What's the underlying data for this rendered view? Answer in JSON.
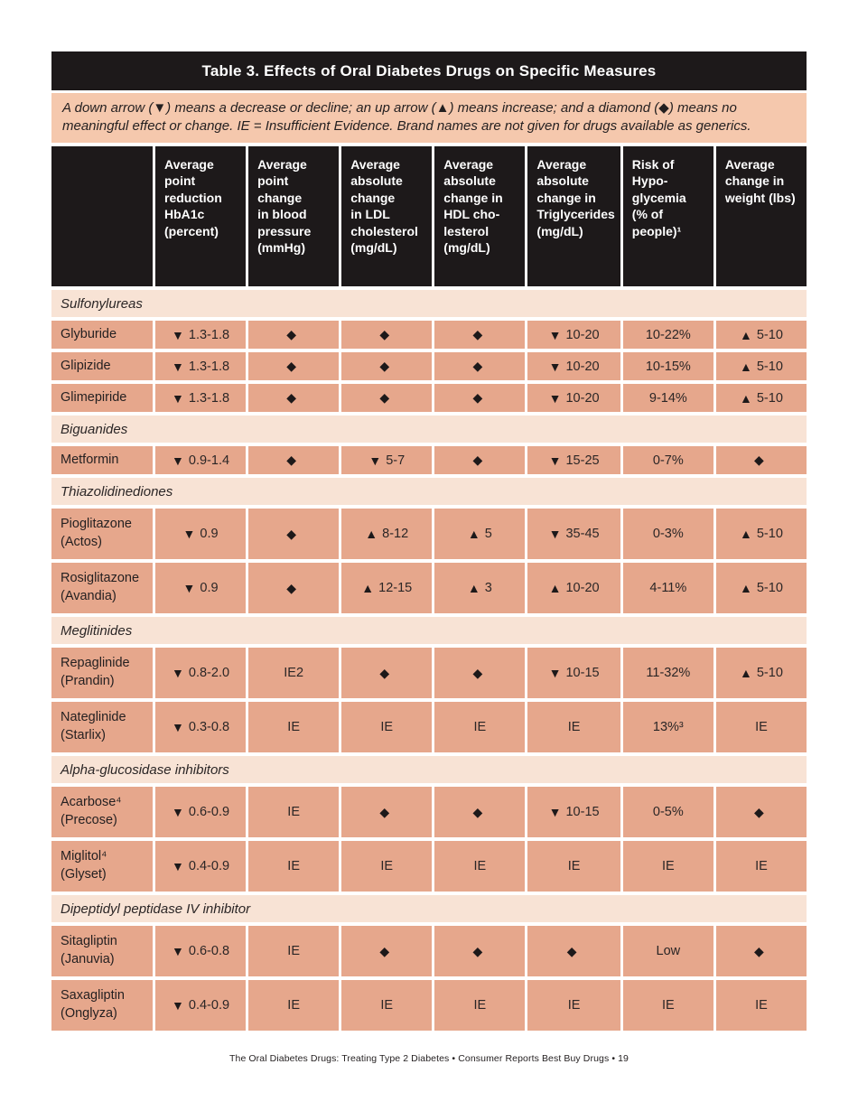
{
  "page": {
    "title": "Table 3. Effects of Oral Diabetes Drugs on Specific Measures",
    "note": "A down arrow (▼) means a decrease or decline; an up arrow (▲) means increase; and a diamond (◆) means no meaningful effect or change. IE = Insufficient Evidence. Brand names are not given for drugs available as generics.",
    "footer": "The Oral Diabetes Drugs: Treating Type 2 Diabetes  •  Consumer Reports Best Buy Drugs  •  19"
  },
  "legend": {
    "down_arrow": "decrease or decline",
    "up_arrow": "increase",
    "diamond": "no meaningful effect or change",
    "IE": "Insufficient Evidence"
  },
  "colors": {
    "header_black": "#1d191a",
    "note_peach": "#f5c8ad",
    "section_light": "#f8e3d5",
    "row_salmon": "#e6a78c",
    "text_dark": "#231f20"
  },
  "table": {
    "columns": [
      "",
      "Average\npoint\nreduction\nHbA1c\n(percent)",
      "Average\npoint\nchange\nin blood\npressure\n(mmHg)",
      "Average\nabsolute\nchange\nin LDL\ncholesterol\n(mg/dL)",
      "Average\nabsolute\nchange in\nHDL cho-\nlesterol\n(mg/dL)",
      "Average\nabsolute\nchange in\nTriglycerides\n(mg/dL)",
      "Risk of\nHypo-\nglycemia\n(% of\npeople)¹",
      "Average\nchange in\nweight (lbs)"
    ],
    "sections": [
      {
        "label": "Sulfonylureas",
        "rows": [
          {
            "drug": "Glyburide",
            "cells": [
              "▼ 1.3-1.8",
              "◆",
              "◆",
              "◆",
              "▼ 10-20",
              "10-22%",
              "▲ 5-10"
            ]
          },
          {
            "drug": "Glipizide",
            "cells": [
              "▼ 1.3-1.8",
              "◆",
              "◆",
              "◆",
              "▼ 10-20",
              "10-15%",
              "▲ 5-10"
            ]
          },
          {
            "drug": "Glimepiride",
            "cells": [
              "▼ 1.3-1.8",
              "◆",
              "◆",
              "◆",
              "▼ 10-20",
              "9-14%",
              "▲ 5-10"
            ]
          }
        ]
      },
      {
        "label": "Biguanides",
        "rows": [
          {
            "drug": "Metformin",
            "cells": [
              "▼ 0.9-1.4",
              "◆",
              "▼ 5-7",
              "◆",
              "▼ 15-25",
              "0-7%",
              "◆"
            ]
          }
        ]
      },
      {
        "label": "Thiazolidinediones",
        "rows": [
          {
            "drug": "Pioglitazone\n(Actos)",
            "cells": [
              "▼ 0.9",
              "◆",
              "▲ 8-12",
              "▲ 5",
              "▼ 35-45",
              "0-3%",
              "▲ 5-10"
            ]
          },
          {
            "drug": "Rosiglitazone\n(Avandia)",
            "cells": [
              "▼ 0.9",
              "◆",
              "▲ 12-15",
              "▲ 3",
              "▲ 10-20",
              "4-11%",
              "▲ 5-10"
            ]
          }
        ]
      },
      {
        "label": "Meglitinides",
        "rows": [
          {
            "drug": "Repaglinide\n(Prandin)",
            "cells": [
              "▼ 0.8-2.0",
              "IE2",
              "◆",
              "◆",
              "▼ 10-15",
              "11-32%",
              "▲ 5-10"
            ]
          },
          {
            "drug": "Nateglinide\n(Starlix)",
            "cells": [
              "▼ 0.3-0.8",
              "IE",
              "IE",
              "IE",
              "IE",
              "13%³",
              "IE"
            ]
          }
        ]
      },
      {
        "label": "Alpha-glucosidase inhibitors",
        "rows": [
          {
            "drug": "Acarbose⁴\n(Precose)",
            "cells": [
              "▼ 0.6-0.9",
              "IE",
              "◆",
              "◆",
              "▼ 10-15",
              "0-5%",
              "◆"
            ]
          },
          {
            "drug": "Miglitol⁴\n(Glyset)",
            "cells": [
              "▼ 0.4-0.9",
              "IE",
              "IE",
              "IE",
              "IE",
              "IE",
              "IE"
            ]
          }
        ]
      },
      {
        "label": "Dipeptidyl peptidase IV inhibitor",
        "rows": [
          {
            "drug": "Sitagliptin\n(Januvia)",
            "cells": [
              "▼ 0.6-0.8",
              "IE",
              "◆",
              "◆",
              "◆",
              "Low",
              "◆"
            ]
          },
          {
            "drug": "Saxagliptin\n(Onglyza)",
            "cells": [
              "▼ 0.4-0.9",
              "IE",
              "IE",
              "IE",
              "IE",
              "IE",
              "IE"
            ]
          }
        ]
      }
    ]
  }
}
